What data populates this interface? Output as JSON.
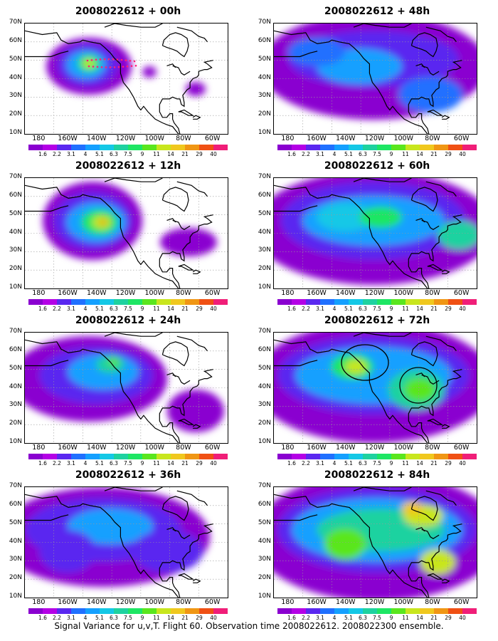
{
  "caption": "Signal Variance for u,v,T. Flight 60. Observation time 2008022612. 2008022300 ensemble.",
  "colors": {
    "levels": [
      "#8a00d0",
      "#b400e6",
      "#5a28f0",
      "#2070ff",
      "#14a0ff",
      "#14c8e6",
      "#1ed2a0",
      "#1ee664",
      "#5ae61e",
      "#c8e61e",
      "#f0c81e",
      "#f09614",
      "#f05014",
      "#f01e78"
    ],
    "coast": "#000000",
    "grid": "#9a9a9a",
    "flight_track": "#ff1e78"
  },
  "colorbar_labels": [
    "1.6",
    "2.2",
    "3.1",
    "4",
    "5.1",
    "6.3",
    "7.5",
    "9",
    "11",
    "14",
    "21",
    "29",
    "40"
  ],
  "axes": {
    "lat_labels": [
      "70N",
      "60N",
      "50N",
      "40N",
      "30N",
      "20N",
      "10N"
    ],
    "lon_labels": [
      "180",
      "160W",
      "140W",
      "120W",
      "100W",
      "80W",
      "60W"
    ]
  },
  "panels": [
    {
      "title": "2008022612 + 00h",
      "lead": "00h",
      "col": 0,
      "row": 0
    },
    {
      "title": "2008022612 + 12h",
      "lead": "12h",
      "col": 0,
      "row": 1
    },
    {
      "title": "2008022612 + 24h",
      "lead": "24h",
      "col": 0,
      "row": 2
    },
    {
      "title": "2008022612 + 36h",
      "lead": "36h",
      "col": 0,
      "row": 3
    },
    {
      "title": "2008022612 + 48h",
      "lead": "48h",
      "col": 1,
      "row": 0
    },
    {
      "title": "2008022612 + 60h",
      "lead": "60h",
      "col": 1,
      "row": 1
    },
    {
      "title": "2008022612 + 72h",
      "lead": "72h",
      "col": 1,
      "row": 2
    },
    {
      "title": "2008022612 + 84h",
      "lead": "84h",
      "col": 1,
      "row": 3
    }
  ]
}
